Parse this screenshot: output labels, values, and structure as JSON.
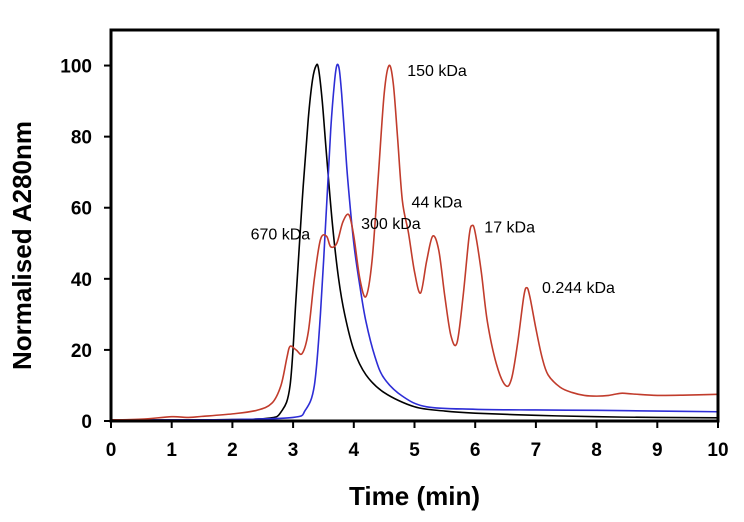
{
  "chart_data": {
    "type": "line",
    "title": "",
    "xlabel": "Time (min)",
    "ylabel": "Normalised A280nm",
    "xlim": [
      0,
      10
    ],
    "ylim": [
      0,
      110
    ],
    "x_ticks": [
      0,
      1,
      2,
      3,
      4,
      5,
      6,
      7,
      8,
      9,
      10
    ],
    "y_ticks": [
      0,
      20,
      40,
      60,
      80,
      100
    ],
    "grid": false,
    "legend": "none",
    "series": [
      {
        "color": "#000000",
        "x": [
          0,
          1,
          2,
          2.6,
          2.8,
          2.95,
          3.05,
          3.15,
          3.25,
          3.32,
          3.38,
          3.42,
          3.48,
          3.55,
          3.65,
          3.75,
          3.85,
          4.0,
          4.2,
          4.5,
          5.0,
          5.5,
          6.0,
          7.0,
          8.0,
          9.0,
          10.0
        ],
        "y": [
          0.3,
          0.3,
          0.4,
          0.8,
          2.5,
          10,
          35,
          62,
          85,
          96,
          100,
          99,
          90,
          75,
          55,
          40,
          30,
          20,
          13,
          8,
          4,
          2.8,
          2.2,
          1.6,
          1.2,
          1.0,
          0.9
        ]
      },
      {
        "color": "#2d2dd6",
        "x": [
          0,
          1,
          2,
          3.0,
          3.2,
          3.35,
          3.45,
          3.55,
          3.62,
          3.68,
          3.72,
          3.76,
          3.8,
          3.85,
          3.9,
          4.0,
          4.1,
          4.2,
          4.35,
          4.5,
          4.8,
          5.2,
          6.0,
          7.0,
          8.0,
          9.0,
          10.0
        ],
        "y": [
          0.2,
          0.3,
          0.4,
          1.0,
          3,
          10,
          30,
          60,
          82,
          95,
          100,
          99,
          92,
          80,
          68,
          50,
          38,
          28,
          18,
          12,
          7,
          4,
          3.3,
          3.1,
          3.0,
          2.8,
          2.6
        ]
      },
      {
        "color": "#c13c2c",
        "x": [
          0,
          0.5,
          1.0,
          1.25,
          1.5,
          2.0,
          2.4,
          2.65,
          2.8,
          2.9,
          2.95,
          3.05,
          3.15,
          3.25,
          3.35,
          3.45,
          3.55,
          3.62,
          3.72,
          3.82,
          3.92,
          4.0,
          4.1,
          4.2,
          4.3,
          4.4,
          4.5,
          4.58,
          4.65,
          4.72,
          4.8,
          4.9,
          5.0,
          5.1,
          5.2,
          5.3,
          5.4,
          5.5,
          5.6,
          5.7,
          5.8,
          5.9,
          5.95,
          6.0,
          6.1,
          6.2,
          6.35,
          6.5,
          6.6,
          6.7,
          6.8,
          6.85,
          6.9,
          7.0,
          7.1,
          7.2,
          7.4,
          7.6,
          7.8,
          8.0,
          8.2,
          8.4,
          8.6,
          9.0,
          9.5,
          10.0
        ],
        "y": [
          0.3,
          0.5,
          1.2,
          1.0,
          1.3,
          2.0,
          3.0,
          5.0,
          10,
          18,
          21,
          20,
          19,
          25,
          40,
          51,
          52,
          49,
          50,
          56,
          58,
          52,
          40,
          35,
          45,
          68,
          92,
          100,
          95,
          80,
          62,
          53,
          42,
          36,
          45,
          52,
          48,
          35,
          24,
          22,
          35,
          52,
          55,
          53,
          42,
          28,
          16,
          10,
          12,
          22,
          35,
          37.5,
          35,
          26,
          18,
          13,
          9.5,
          8.0,
          7.2,
          7.0,
          7.2,
          7.8,
          7.6,
          7.2,
          7.3,
          7.5
        ]
      }
    ],
    "annotations": [
      {
        "text": "150 kDa",
        "x": 4.88,
        "y": 97
      },
      {
        "text": "670 kDa",
        "x": 2.3,
        "y": 51
      },
      {
        "text": "300 kDa",
        "x": 4.12,
        "y": 54
      },
      {
        "text": "44 kDa",
        "x": 4.95,
        "y": 60
      },
      {
        "text": "17 kDa",
        "x": 6.15,
        "y": 53
      },
      {
        "text": "0.244 kDa",
        "x": 7.1,
        "y": 36
      }
    ]
  }
}
